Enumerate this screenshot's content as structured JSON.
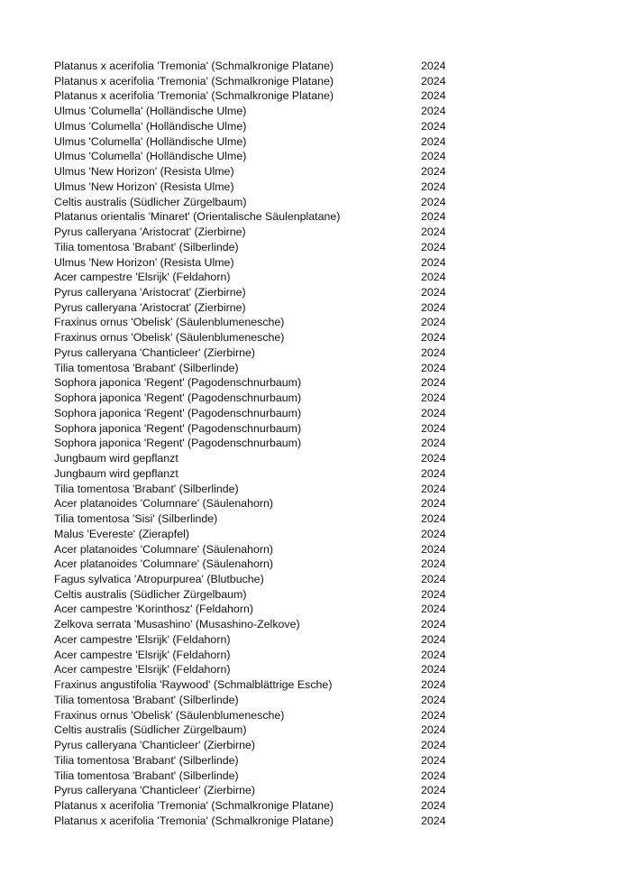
{
  "rows": [
    {
      "name": "Platanus x acerifolia 'Tremonia' (Schmalkronige Platane)",
      "year": "2024"
    },
    {
      "name": "Platanus x acerifolia 'Tremonia' (Schmalkronige Platane)",
      "year": "2024"
    },
    {
      "name": "Platanus x acerifolia 'Tremonia' (Schmalkronige Platane)",
      "year": "2024"
    },
    {
      "name": "Ulmus 'Columella' (Holländische Ulme)",
      "year": "2024"
    },
    {
      "name": "Ulmus 'Columella' (Holländische Ulme)",
      "year": "2024"
    },
    {
      "name": "Ulmus 'Columella' (Holländische Ulme)",
      "year": "2024"
    },
    {
      "name": "Ulmus 'Columella' (Holländische Ulme)",
      "year": "2024"
    },
    {
      "name": "Ulmus 'New Horizon' (Resista Ulme)",
      "year": "2024"
    },
    {
      "name": "Ulmus 'New Horizon' (Resista Ulme)",
      "year": "2024"
    },
    {
      "name": "Celtis australis (Südlicher Zürgelbaum)",
      "year": "2024"
    },
    {
      "name": "Platanus orientalis 'Minaret' (Orientalische Säulenplatane)",
      "year": "2024"
    },
    {
      "name": "Pyrus calleryana 'Aristocrat' (Zierbirne)",
      "year": "2024"
    },
    {
      "name": "Tilia tomentosa 'Brabant' (Silberlinde)",
      "year": "2024"
    },
    {
      "name": "Ulmus 'New Horizon' (Resista Ulme)",
      "year": "2024"
    },
    {
      "name": "Acer campestre 'Elsrijk' (Feldahorn)",
      "year": "2024"
    },
    {
      "name": "Pyrus calleryana 'Aristocrat' (Zierbirne)",
      "year": "2024"
    },
    {
      "name": "Pyrus calleryana 'Aristocrat' (Zierbirne)",
      "year": "2024"
    },
    {
      "name": "Fraxinus ornus 'Obelisk' (Säulenblumenesche)",
      "year": "2024"
    },
    {
      "name": "Fraxinus ornus 'Obelisk' (Säulenblumenesche)",
      "year": "2024"
    },
    {
      "name": "Pyrus calleryana 'Chanticleer' (Zierbirne)",
      "year": "2024"
    },
    {
      "name": "Tilia tomentosa 'Brabant' (Silberlinde)",
      "year": "2024"
    },
    {
      "name": "Sophora japonica 'Regent' (Pagodenschnurbaum)",
      "year": "2024"
    },
    {
      "name": "Sophora japonica 'Regent' (Pagodenschnurbaum)",
      "year": "2024"
    },
    {
      "name": "Sophora japonica 'Regent' (Pagodenschnurbaum)",
      "year": "2024"
    },
    {
      "name": "Sophora japonica 'Regent' (Pagodenschnurbaum)",
      "year": "2024"
    },
    {
      "name": "Sophora japonica 'Regent' (Pagodenschnurbaum)",
      "year": "2024"
    },
    {
      "name": "Jungbaum wird gepflanzt",
      "year": "2024"
    },
    {
      "name": "Jungbaum wird gepflanzt",
      "year": "2024"
    },
    {
      "name": "Tilia tomentosa 'Brabant' (Silberlinde)",
      "year": "2024"
    },
    {
      "name": "Acer platanoides 'Columnare' (Säulenahorn)",
      "year": "2024"
    },
    {
      "name": "Tilia tomentosa 'Sisi' (Silberlinde)",
      "year": "2024"
    },
    {
      "name": "Malus 'Evereste' (Zierapfel)",
      "year": "2024"
    },
    {
      "name": "Acer platanoides 'Columnare' (Säulenahorn)",
      "year": "2024"
    },
    {
      "name": "Acer platanoides 'Columnare' (Säulenahorn)",
      "year": "2024"
    },
    {
      "name": "Fagus sylvatica 'Atropurpurea' (Blutbuche)",
      "year": "2024"
    },
    {
      "name": "Celtis australis (Südlicher Zürgelbaum)",
      "year": "2024"
    },
    {
      "name": "Acer campestre 'Korinthosz' (Feldahorn)",
      "year": "2024"
    },
    {
      "name": "Zelkova serrata 'Musashino' (Musashino-Zelkove)",
      "year": "2024"
    },
    {
      "name": "Acer campestre 'Elsrijk' (Feldahorn)",
      "year": "2024"
    },
    {
      "name": "Acer campestre 'Elsrijk' (Feldahorn)",
      "year": "2024"
    },
    {
      "name": "Acer campestre 'Elsrijk' (Feldahorn)",
      "year": "2024"
    },
    {
      "name": "Fraxinus angustifolia 'Raywood' (Schmalblättrige Esche)",
      "year": "2024"
    },
    {
      "name": "Tilia tomentosa 'Brabant' (Silberlinde)",
      "year": "2024"
    },
    {
      "name": "Fraxinus ornus 'Obelisk' (Säulenblumenesche)",
      "year": "2024"
    },
    {
      "name": "Celtis australis (Südlicher Zürgelbaum)",
      "year": "2024"
    },
    {
      "name": "Pyrus calleryana 'Chanticleer' (Zierbirne)",
      "year": "2024"
    },
    {
      "name": "Tilia tomentosa 'Brabant' (Silberlinde)",
      "year": "2024"
    },
    {
      "name": "Tilia tomentosa 'Brabant' (Silberlinde)",
      "year": "2024"
    },
    {
      "name": "Pyrus calleryana 'Chanticleer' (Zierbirne)",
      "year": "2024"
    },
    {
      "name": "Platanus x acerifolia 'Tremonia' (Schmalkronige Platane)",
      "year": "2024"
    },
    {
      "name": "Platanus x acerifolia 'Tremonia' (Schmalkronige Platane)",
      "year": "2024"
    }
  ]
}
